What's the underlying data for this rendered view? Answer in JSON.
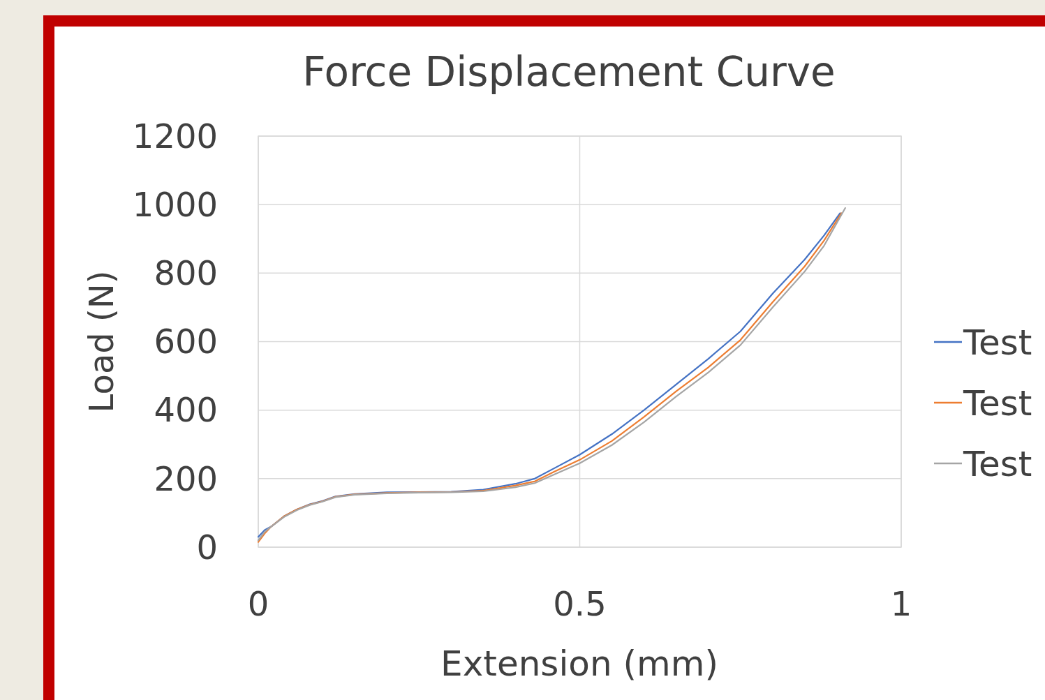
{
  "chart_data": {
    "type": "line",
    "title": "Force Displacement Curve",
    "xlabel": "Extension (mm)",
    "ylabel": "Load (N)",
    "xlim": [
      0,
      1
    ],
    "xticks": [
      0,
      0.5,
      1
    ],
    "ylim": [
      0,
      1200
    ],
    "yticks": [
      0,
      200,
      400,
      600,
      800,
      1000,
      1200
    ],
    "grid": true,
    "legend": "right",
    "marker": "none",
    "line_style": "solid",
    "series": [
      {
        "name": "Test",
        "color": "#4472c4",
        "x": [
          0,
          0.01,
          0.02,
          0.04,
          0.06,
          0.08,
          0.1,
          0.12,
          0.15,
          0.2,
          0.25,
          0.3,
          0.35,
          0.4,
          0.43,
          0.46,
          0.5,
          0.55,
          0.6,
          0.65,
          0.7,
          0.75,
          0.8,
          0.85,
          0.88,
          0.905
        ],
        "values": [
          30,
          50,
          60,
          90,
          110,
          125,
          135,
          148,
          155,
          160,
          161,
          162,
          168,
          185,
          200,
          230,
          270,
          330,
          400,
          475,
          550,
          630,
          740,
          840,
          910,
          975
        ]
      },
      {
        "name": "Test",
        "color": "#ed7d31",
        "x": [
          0,
          0.01,
          0.02,
          0.04,
          0.06,
          0.08,
          0.1,
          0.12,
          0.15,
          0.2,
          0.25,
          0.3,
          0.35,
          0.4,
          0.43,
          0.46,
          0.5,
          0.55,
          0.6,
          0.65,
          0.7,
          0.75,
          0.8,
          0.85,
          0.88,
          0.907
        ],
        "values": [
          15,
          40,
          60,
          90,
          110,
          124,
          134,
          147,
          154,
          158,
          160,
          161,
          165,
          180,
          192,
          220,
          255,
          310,
          380,
          455,
          525,
          605,
          715,
          820,
          895,
          975
        ]
      },
      {
        "name": "Test",
        "color": "#a5a5a5",
        "x": [
          0,
          0.01,
          0.02,
          0.04,
          0.06,
          0.08,
          0.1,
          0.12,
          0.15,
          0.2,
          0.25,
          0.3,
          0.35,
          0.4,
          0.43,
          0.46,
          0.5,
          0.55,
          0.6,
          0.65,
          0.7,
          0.75,
          0.8,
          0.85,
          0.88,
          0.913
        ],
        "values": [
          20,
          45,
          60,
          88,
          108,
          123,
          133,
          146,
          153,
          157,
          159,
          160,
          163,
          175,
          187,
          212,
          245,
          298,
          365,
          440,
          510,
          590,
          700,
          805,
          880,
          990
        ]
      }
    ]
  }
}
